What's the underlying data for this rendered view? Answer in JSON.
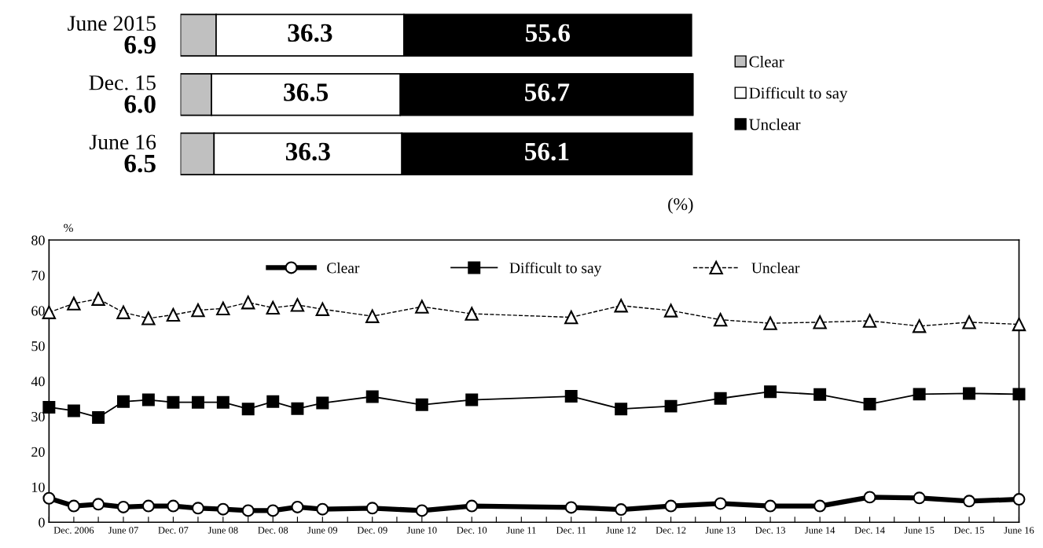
{
  "chart_data": [
    {
      "type": "bar",
      "orientation": "horizontal",
      "stacked": true,
      "categories": [
        "June 2015",
        "Dec. 15",
        "June 16"
      ],
      "legend": "right",
      "tick_labels": "y",
      "annotations": [
        "(%)"
      ],
      "series": [
        {
          "name": "Clear",
          "color": "#c0c0c0",
          "values": [
            6.9,
            6.0,
            6.5
          ],
          "value_labels": [
            "6.9",
            "6.0",
            "6.5"
          ]
        },
        {
          "name": "Difficult to say",
          "color": "#ffffff",
          "values": [
            36.3,
            36.5,
            36.3
          ],
          "value_labels": [
            "36.3",
            "36.5",
            "36.3"
          ]
        },
        {
          "name": "Unclear",
          "color": "#000000",
          "values": [
            55.6,
            56.7,
            56.1
          ],
          "value_labels": [
            "55.6",
            "56.7",
            "56.1"
          ]
        }
      ]
    },
    {
      "type": "line",
      "ylabel": "%",
      "ylim": [
        0,
        80
      ],
      "yticks": [
        0,
        10,
        20,
        30,
        40,
        50,
        60,
        70,
        80
      ],
      "legend": "top",
      "grid": false,
      "xlim": [
        "2006-09",
        "2016-06"
      ],
      "xticks": [
        {
          "value": "2006-09",
          "label": null
        },
        {
          "value": "2006-12",
          "label": "Dec. 2006"
        },
        {
          "value": "2007-03",
          "label": null
        },
        {
          "value": "2007-06",
          "label": "June 07"
        },
        {
          "value": "2007-09",
          "label": null
        },
        {
          "value": "2007-12",
          "label": "Dec. 07"
        },
        {
          "value": "2008-03",
          "label": null
        },
        {
          "value": "2008-06",
          "label": "June 08"
        },
        {
          "value": "2008-09",
          "label": null
        },
        {
          "value": "2008-12",
          "label": "Dec. 08"
        },
        {
          "value": "2009-03",
          "label": null
        },
        {
          "value": "2009-06",
          "label": "June 09"
        },
        {
          "value": "2009-09",
          "label": null
        },
        {
          "value": "2009-12",
          "label": "Dec. 09"
        },
        {
          "value": "2010-03",
          "label": null
        },
        {
          "value": "2010-06",
          "label": "June 10"
        },
        {
          "value": "2010-09",
          "label": null
        },
        {
          "value": "2010-12",
          "label": "Dec. 10"
        },
        {
          "value": "2011-03",
          "label": null
        },
        {
          "value": "2011-06",
          "label": "June 11"
        },
        {
          "value": "2011-09",
          "label": null
        },
        {
          "value": "2011-12",
          "label": "Dec. 11"
        },
        {
          "value": "2012-03",
          "label": null
        },
        {
          "value": "2012-06",
          "label": "June 12"
        },
        {
          "value": "2012-09",
          "label": null
        },
        {
          "value": "2012-12",
          "label": "Dec. 12"
        },
        {
          "value": "2013-03",
          "label": null
        },
        {
          "value": "2013-06",
          "label": "June 13"
        },
        {
          "value": "2013-09",
          "label": null
        },
        {
          "value": "2013-12",
          "label": "Dec. 13"
        },
        {
          "value": "2014-03",
          "label": null
        },
        {
          "value": "2014-06",
          "label": "June 14"
        },
        {
          "value": "2014-09",
          "label": null
        },
        {
          "value": "2014-12",
          "label": "Dec. 14"
        },
        {
          "value": "2015-03",
          "label": null
        },
        {
          "value": "2015-06",
          "label": "June 15"
        },
        {
          "value": "2015-09",
          "label": null
        },
        {
          "value": "2015-12",
          "label": "Dec. 15"
        },
        {
          "value": "2016-03",
          "label": null
        },
        {
          "value": "2016-06",
          "label": "June 16"
        }
      ],
      "x": [
        "2006-09",
        "2006-12",
        "2007-03",
        "2007-06",
        "2007-09",
        "2007-12",
        "2008-03",
        "2008-06",
        "2008-09",
        "2008-12",
        "2009-03",
        "2009-06",
        "2009-12",
        "2010-06",
        "2010-12",
        "2011-12",
        "2012-06",
        "2012-12",
        "2013-06",
        "2013-12",
        "2014-06",
        "2014-12",
        "2015-06",
        "2015-12",
        "2016-06"
      ],
      "series": [
        {
          "name": "Clear",
          "color": "#000000",
          "marker": "circle",
          "line_style": "solid",
          "values": [
            6.8,
            4.6,
            5.1,
            4.3,
            4.6,
            4.6,
            4.0,
            3.7,
            3.3,
            3.3,
            4.3,
            3.7,
            4.0,
            3.3,
            4.6,
            4.2,
            3.6,
            4.6,
            5.3,
            4.6,
            4.6,
            7.1,
            6.9,
            6.0,
            6.5
          ]
        },
        {
          "name": "Difficult to say",
          "color": "#000000",
          "marker": "square",
          "line_style": "solid",
          "values": [
            32.6,
            31.6,
            29.7,
            34.2,
            34.7,
            34.0,
            34.0,
            34.0,
            32.1,
            34.2,
            32.2,
            33.8,
            35.6,
            33.3,
            34.7,
            35.7,
            32.1,
            32.9,
            35.1,
            37.0,
            36.2,
            33.5,
            36.3,
            36.5,
            36.3
          ]
        },
        {
          "name": "Unclear",
          "color": "#000000",
          "marker": "triangle",
          "line_style": "dashed",
          "values": [
            59.5,
            62.0,
            63.3,
            59.5,
            57.8,
            58.8,
            60.1,
            60.6,
            62.3,
            60.8,
            61.6,
            60.4,
            58.4,
            61.1,
            59.1,
            58.1,
            61.4,
            60.0,
            57.4,
            56.4,
            56.7,
            57.1,
            55.6,
            56.7,
            56.1
          ]
        }
      ]
    }
  ]
}
